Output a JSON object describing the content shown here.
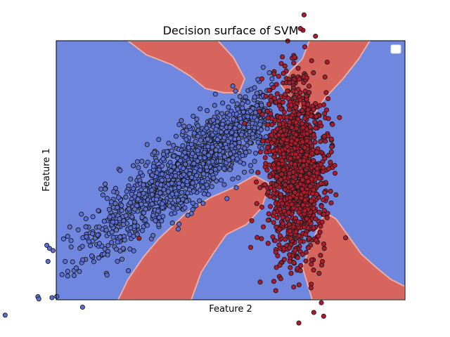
{
  "chart_data": {
    "type": "scatter",
    "title": "Decision surface of SVM",
    "xlabel": "Feature 2",
    "ylabel": "Feature 1",
    "xlim": [
      -4,
      4
    ],
    "ylim": [
      -4,
      4
    ],
    "ticks_visible": false,
    "grid": false,
    "legend": {
      "placement": "top-right",
      "entries": []
    },
    "background_regions": [
      {
        "class": "blue",
        "color": "#6f87df"
      },
      {
        "class": "red",
        "color": "#d7655e"
      }
    ],
    "series": [
      {
        "color": "#5b6fd6",
        "edge_color": "#1a1a1a",
        "points": [
          [
            -3.25,
            -2.2
          ],
          [
            -3.05,
            -2.0
          ],
          [
            -2.85,
            -1.85
          ],
          [
            -2.7,
            -1.6
          ],
          [
            -2.55,
            -1.5
          ],
          [
            -2.4,
            -1.4
          ],
          [
            -2.2,
            -1.2
          ],
          [
            -2.05,
            -1.05
          ],
          [
            -1.95,
            -1.2
          ],
          [
            -1.8,
            -0.75
          ],
          [
            -1.6,
            -0.45
          ],
          [
            -1.45,
            -0.2
          ],
          [
            -1.3,
            0.1
          ],
          [
            -1.15,
            0.3
          ],
          [
            -1.05,
            0.55
          ],
          [
            -0.9,
            0.8
          ],
          [
            -0.75,
            1.05
          ],
          [
            -0.55,
            1.3
          ],
          [
            -0.4,
            1.55
          ],
          [
            -0.2,
            1.75
          ],
          [
            -0.05,
            1.95
          ],
          [
            0.15,
            2.05
          ],
          [
            0.4,
            2.1
          ],
          [
            0.6,
            2.0
          ],
          [
            0.8,
            1.7
          ],
          [
            0.5,
            1.45
          ],
          [
            0.1,
            1.3
          ],
          [
            -0.3,
            0.95
          ],
          [
            -0.6,
            0.55
          ],
          [
            -0.95,
            0.25
          ],
          [
            -1.35,
            -0.4
          ],
          [
            -1.7,
            -0.9
          ],
          [
            -2.3,
            -1.0
          ],
          [
            -2.6,
            -1.15
          ],
          [
            -1.9,
            0.25
          ],
          [
            -1.65,
            0.95
          ],
          [
            -1.35,
            0.6
          ],
          [
            -0.95,
            1.35
          ],
          [
            -0.7,
            1.9
          ],
          [
            -0.35,
            2.35
          ],
          [
            0.05,
            2.6
          ],
          [
            0.55,
            2.55
          ],
          [
            0.75,
            2.3
          ],
          [
            0.45,
            0.85
          ],
          [
            0.15,
            0.35
          ],
          [
            -0.15,
            0.05
          ],
          [
            -0.55,
            -0.45
          ],
          [
            -0.85,
            -0.65
          ],
          [
            -1.1,
            -0.9
          ],
          [
            -1.4,
            -1.1
          ],
          [
            -1.25,
            1.05
          ],
          [
            -0.5,
            0.25
          ],
          [
            -0.1,
            0.7
          ],
          [
            0.25,
            1.1
          ],
          [
            0.7,
            1.25
          ],
          [
            0.9,
            2.25
          ],
          [
            -3.4,
            -2.35
          ],
          [
            -2.0,
            -0.45
          ],
          [
            -0.7,
            0.0
          ],
          [
            0.35,
            0.55
          ],
          [
            -1.55,
            0.35
          ],
          [
            -1.0,
            -0.35
          ],
          [
            -0.3,
            1.5
          ],
          [
            0.6,
            1.55
          ],
          [
            -1.75,
            0.55
          ],
          [
            -2.1,
            -0.75
          ]
        ]
      },
      {
        "color": "#b01a2c",
        "edge_color": "#1a1a1a",
        "points": [
          [
            1.1,
            2.9
          ],
          [
            1.35,
            2.7
          ],
          [
            1.55,
            2.5
          ],
          [
            1.8,
            2.4
          ],
          [
            1.2,
            2.1
          ],
          [
            1.45,
            1.8
          ],
          [
            1.7,
            1.6
          ],
          [
            1.95,
            1.3
          ],
          [
            1.15,
            1.2
          ],
          [
            1.4,
            0.9
          ],
          [
            1.7,
            0.7
          ],
          [
            1.9,
            0.3
          ],
          [
            1.1,
            0.2
          ],
          [
            1.35,
            -0.1
          ],
          [
            1.65,
            -0.3
          ],
          [
            1.9,
            -0.6
          ],
          [
            1.15,
            -0.75
          ],
          [
            1.4,
            -1.05
          ],
          [
            1.7,
            -1.25
          ],
          [
            1.95,
            -1.5
          ],
          [
            1.2,
            -1.65
          ],
          [
            1.5,
            -1.9
          ],
          [
            1.8,
            -2.1
          ],
          [
            1.35,
            -2.4
          ],
          [
            1.65,
            -2.6
          ],
          [
            1.05,
            -3.0
          ],
          [
            1.6,
            -3.1
          ],
          [
            2.2,
            -0.85
          ],
          [
            2.25,
            0.05
          ],
          [
            2.15,
            1.05
          ],
          [
            0.9,
            -0.2
          ],
          [
            0.85,
            0.7
          ],
          [
            0.95,
            1.6
          ],
          [
            1.0,
            -1.3
          ],
          [
            1.3,
            2.45
          ],
          [
            1.75,
            2.85
          ],
          [
            2.05,
            2.0
          ],
          [
            2.1,
            -1.6
          ],
          [
            1.55,
            0.4
          ],
          [
            1.25,
            -0.45
          ],
          [
            1.5,
            1.1
          ],
          [
            1.85,
            -0.95
          ],
          [
            1.45,
            -2.85
          ],
          [
            0.75,
            -1.75
          ],
          [
            1.05,
            2.65
          ],
          [
            -2.1,
            -2.1
          ],
          [
            1.15,
            -3.35
          ],
          [
            1.6,
            -2.2
          ],
          [
            1.8,
            -0.1
          ],
          [
            1.3,
            -1.5
          ]
        ]
      }
    ]
  }
}
